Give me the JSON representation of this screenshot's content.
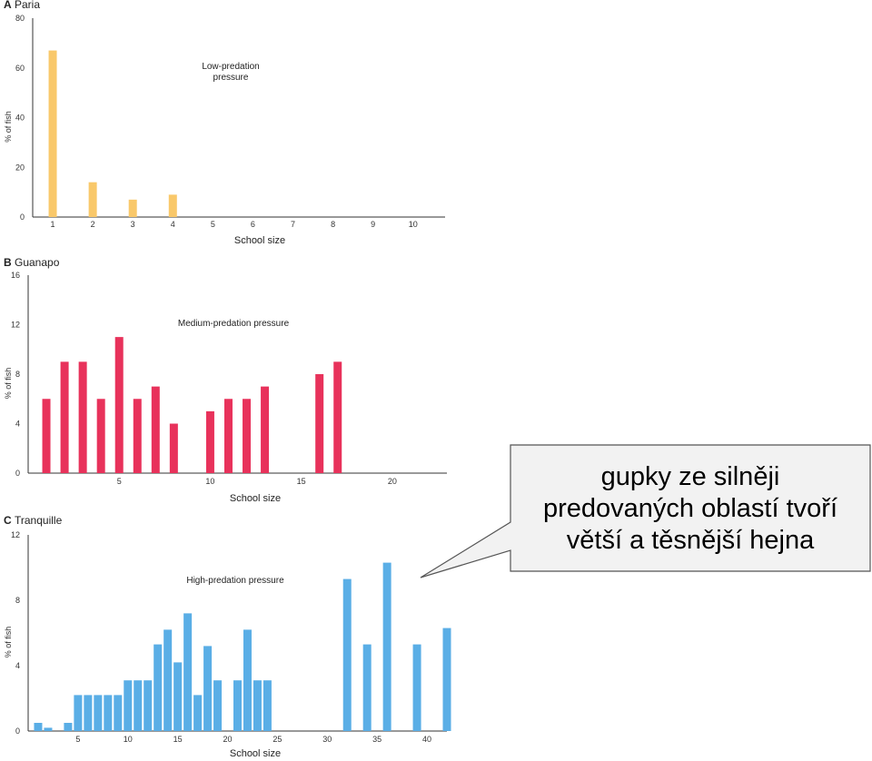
{
  "chart_data": [
    {
      "type": "bar",
      "panel_label": "A",
      "title": "Paria",
      "annotation": "Low-predation pressure",
      "annotation_lines": [
        "Low-predation",
        "pressure"
      ],
      "xlabel": "School size",
      "ylabel": "% of fish",
      "xlim": [
        0.5,
        10.8
      ],
      "ylim": [
        0,
        80
      ],
      "yticks": [
        0,
        20,
        40,
        60,
        80
      ],
      "xticks": [
        1,
        2,
        3,
        4,
        5,
        6,
        7,
        8,
        9,
        10
      ],
      "color": "#F9C86A",
      "x": [
        1,
        2,
        3,
        4
      ],
      "values": [
        67,
        14,
        7,
        9
      ]
    },
    {
      "type": "bar",
      "panel_label": "B",
      "title": "Guanapo",
      "annotation": "Medium-predation pressure",
      "xlabel": "School size",
      "ylabel": "% of fish",
      "xlim": [
        0,
        23
      ],
      "ylim": [
        0,
        16
      ],
      "yticks": [
        0,
        4,
        8,
        12,
        16
      ],
      "xticks": [
        5,
        10,
        15,
        20
      ],
      "color": "#E8325B",
      "x": [
        1,
        2,
        3,
        4,
        5,
        6,
        7,
        8,
        10,
        11,
        12,
        13,
        16,
        17
      ],
      "values": [
        6,
        9,
        9,
        6,
        11,
        6,
        7,
        4,
        5,
        6,
        6,
        7,
        8,
        9
      ]
    },
    {
      "type": "bar",
      "panel_label": "C",
      "title": "Tranquille",
      "annotation": "High-predation pressure",
      "xlabel": "School size",
      "ylabel": "% of fish",
      "xlim": [
        0,
        42
      ],
      "ylim": [
        0,
        12
      ],
      "yticks": [
        0,
        4,
        8,
        12
      ],
      "xticks": [
        5,
        10,
        15,
        20,
        25,
        30,
        35,
        40
      ],
      "color": "#5AAEE6",
      "x": [
        1,
        2,
        4,
        5,
        6,
        7,
        8,
        9,
        10,
        11,
        12,
        13,
        14,
        15,
        16,
        17,
        18,
        19,
        21,
        22,
        23,
        24,
        32,
        34,
        36,
        39,
        42
      ],
      "values": [
        0.5,
        0.2,
        0.5,
        2.2,
        2.2,
        2.2,
        2.2,
        2.2,
        3.1,
        3.1,
        3.1,
        5.3,
        6.2,
        4.2,
        7.2,
        2.2,
        5.2,
        3.1,
        3.1,
        6.2,
        3.1,
        3.1,
        9.3,
        5.3,
        10.3,
        5.3,
        6.3
      ]
    }
  ],
  "callout": {
    "lines": [
      "gupky ze silněji",
      "predovaných oblastí tvoří",
      "větší a těsnější hejna"
    ]
  }
}
